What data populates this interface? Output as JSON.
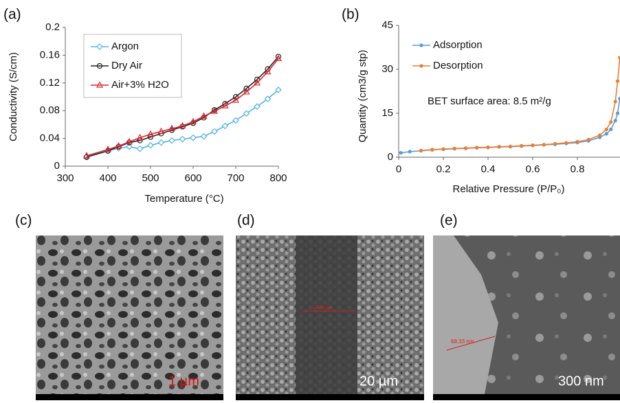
{
  "chart_data": [
    {
      "type": "line",
      "panel_label": "(a)",
      "x_label": "Temperature (°C)",
      "y_label": "Conductivity (S/cm)",
      "x": [
        350,
        400,
        425,
        450,
        475,
        500,
        525,
        550,
        575,
        600,
        625,
        650,
        675,
        700,
        725,
        750,
        775,
        800
      ],
      "xlim": [
        300,
        800
      ],
      "xticks": [
        300,
        400,
        500,
        600,
        700,
        800
      ],
      "ylim": [
        0,
        0.2
      ],
      "yticks": [
        0,
        0.04,
        0.08,
        0.12,
        0.16,
        0.2
      ],
      "series": [
        {
          "name": "Argon",
          "color": "#4fb3e8",
          "marker": "diamond",
          "values": [
            0.014,
            0.022,
            0.026,
            0.028,
            0.025,
            0.03,
            0.034,
            0.037,
            0.039,
            0.041,
            0.043,
            0.05,
            0.058,
            0.066,
            0.076,
            0.086,
            0.097,
            0.11
          ]
        },
        {
          "name": "Dry Air",
          "color": "#222222",
          "marker": "circle",
          "values": [
            0.013,
            0.022,
            0.028,
            0.034,
            0.037,
            0.042,
            0.047,
            0.052,
            0.057,
            0.062,
            0.07,
            0.081,
            0.09,
            0.1,
            0.112,
            0.125,
            0.14,
            0.158
          ]
        },
        {
          "name": "Air+3% H2O",
          "color": "#d9262e",
          "marker": "triangle",
          "values": [
            0.015,
            0.024,
            0.029,
            0.035,
            0.041,
            0.046,
            0.05,
            0.054,
            0.058,
            0.064,
            0.072,
            0.079,
            0.087,
            0.095,
            0.107,
            0.12,
            0.136,
            0.155
          ]
        }
      ]
    },
    {
      "type": "line",
      "panel_label": "(b)",
      "x_label": "Relative Pressure (P/P₀)",
      "y_label": "Quantity (cm3/g stp)",
      "annotation": "BET surface area: 8.5 m²/g",
      "x": [
        0.01,
        0.05,
        0.1,
        0.15,
        0.2,
        0.25,
        0.3,
        0.35,
        0.4,
        0.45,
        0.5,
        0.55,
        0.6,
        0.65,
        0.7,
        0.75,
        0.8,
        0.85,
        0.9,
        0.93,
        0.95,
        0.97,
        0.98,
        0.99
      ],
      "xlim": [
        0,
        1
      ],
      "xticks": [
        0,
        0.2,
        0.4,
        0.6,
        0.8
      ],
      "ylim": [
        0,
        45
      ],
      "yticks": [
        0,
        15,
        30,
        45
      ],
      "series": [
        {
          "name": "Adsorption",
          "color": "#5b9bd5",
          "marker": "dot",
          "values": [
            1.5,
            1.9,
            2.2,
            2.5,
            2.7,
            2.9,
            3.0,
            3.2,
            3.3,
            3.5,
            3.6,
            3.8,
            4.0,
            4.2,
            4.4,
            4.7,
            5.0,
            5.6,
            6.8,
            8.0,
            9.5,
            12.5,
            15,
            20
          ]
        },
        {
          "name": "Desorption",
          "color": "#ed7d31",
          "marker": "dot",
          "values": [
            null,
            null,
            2.3,
            2.6,
            2.8,
            3.0,
            3.1,
            3.3,
            3.4,
            3.6,
            3.7,
            3.9,
            4.1,
            4.3,
            4.6,
            4.9,
            5.3,
            6.0,
            7.5,
            9.5,
            12,
            19,
            26,
            34
          ]
        }
      ]
    }
  ],
  "images": [
    {
      "label": "(c)",
      "scale_bar": "1 µm"
    },
    {
      "label": "(d)",
      "scale_bar": "20 µm",
      "measurement": "19.46 µm"
    },
    {
      "label": "(e)",
      "scale_bar": "300 nm",
      "measurement": "68.33 nm"
    }
  ]
}
